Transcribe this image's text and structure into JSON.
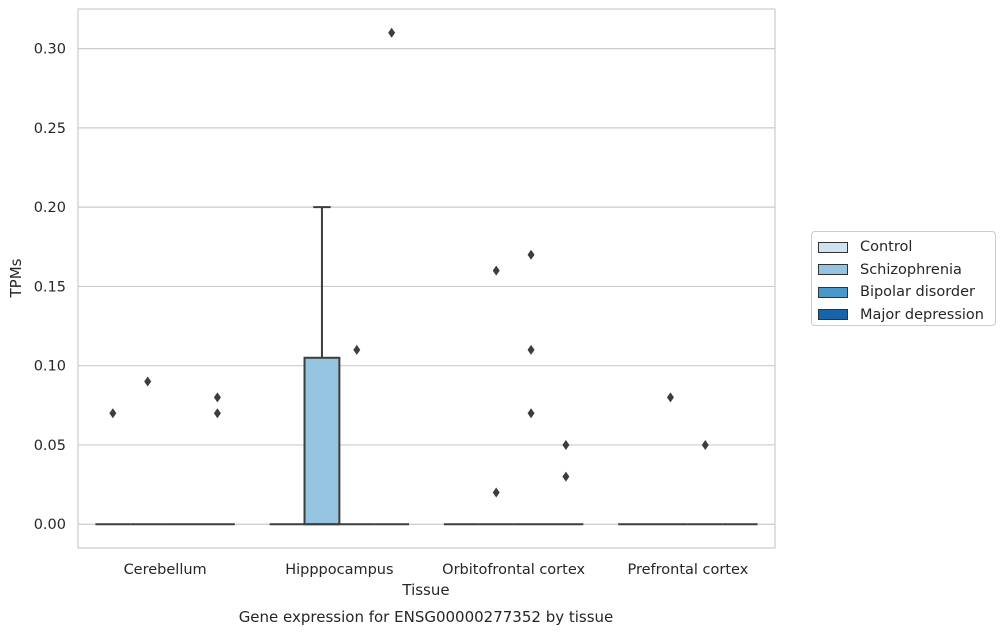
{
  "chart_data": {
    "type": "box",
    "title": "Gene expression for ENSG00000277352 by tissue",
    "xlabel": "Tissue",
    "ylabel": "TPMs",
    "ylim": [
      -0.015,
      0.325
    ],
    "yticks": [
      "0.00",
      "0.05",
      "0.10",
      "0.15",
      "0.20",
      "0.25",
      "0.30"
    ],
    "ytick_values": [
      0,
      0.05,
      0.1,
      0.15,
      0.2,
      0.25,
      0.3
    ],
    "grid": true,
    "legend_position": "right",
    "categories": [
      "Cerebellum",
      "Hipppocampus",
      "Orbitofrontal cortex",
      "Prefrontal cortex"
    ],
    "series": [
      {
        "name": "Control",
        "color": "#d0e1f2",
        "boxes": [
          {
            "category": "Cerebellum",
            "q1": 0,
            "median": 0,
            "q3": 0,
            "whisker_low": 0,
            "whisker_high": 0,
            "outliers": [
              0.07
            ]
          },
          {
            "category": "Hipppocampus",
            "q1": 0,
            "median": 0,
            "q3": 0,
            "whisker_low": 0,
            "whisker_high": 0,
            "outliers": []
          },
          {
            "category": "Orbitofrontal cortex",
            "q1": 0,
            "median": 0,
            "q3": 0,
            "whisker_low": 0,
            "whisker_high": 0,
            "outliers": []
          },
          {
            "category": "Prefrontal cortex",
            "q1": 0,
            "median": 0,
            "q3": 0,
            "whisker_low": 0,
            "whisker_high": 0,
            "outliers": []
          }
        ]
      },
      {
        "name": "Schizophrenia",
        "color": "#94c4df",
        "boxes": [
          {
            "category": "Cerebellum",
            "q1": 0,
            "median": 0,
            "q3": 0,
            "whisker_low": 0,
            "whisker_high": 0,
            "outliers": [
              0.09
            ]
          },
          {
            "category": "Hipppocampus",
            "q1": 0,
            "median": 0,
            "q3": 0.105,
            "whisker_low": 0,
            "whisker_high": 0.2,
            "outliers": []
          },
          {
            "category": "Orbitofrontal cortex",
            "q1": 0,
            "median": 0,
            "q3": 0,
            "whisker_low": 0,
            "whisker_high": 0,
            "outliers": [
              0.16,
              0.02
            ]
          },
          {
            "category": "Prefrontal cortex",
            "q1": 0,
            "median": 0,
            "q3": 0,
            "whisker_low": 0,
            "whisker_high": 0,
            "outliers": [
              0.08
            ]
          }
        ]
      },
      {
        "name": "Bipolar disorder",
        "color": "#4a98c9",
        "boxes": [
          {
            "category": "Cerebellum",
            "q1": 0,
            "median": 0,
            "q3": 0,
            "whisker_low": 0,
            "whisker_high": 0,
            "outliers": []
          },
          {
            "category": "Hipppocampus",
            "q1": 0,
            "median": 0,
            "q3": 0,
            "whisker_low": 0,
            "whisker_high": 0,
            "outliers": [
              0.11
            ]
          },
          {
            "category": "Orbitofrontal cortex",
            "q1": 0,
            "median": 0,
            "q3": 0,
            "whisker_low": 0,
            "whisker_high": 0,
            "outliers": [
              0.17,
              0.11,
              0.07
            ]
          },
          {
            "category": "Prefrontal cortex",
            "q1": 0,
            "median": 0,
            "q3": 0,
            "whisker_low": 0,
            "whisker_high": 0,
            "outliers": [
              0.05
            ]
          }
        ]
      },
      {
        "name": "Major depression",
        "color": "#1764ab",
        "boxes": [
          {
            "category": "Cerebellum",
            "q1": 0,
            "median": 0,
            "q3": 0,
            "whisker_low": 0,
            "whisker_high": 0,
            "outliers": [
              0.08,
              0.07
            ]
          },
          {
            "category": "Hipppocampus",
            "q1": 0,
            "median": 0,
            "q3": 0,
            "whisker_low": 0,
            "whisker_high": 0,
            "outliers": [
              0.31
            ]
          },
          {
            "category": "Orbitofrontal cortex",
            "q1": 0,
            "median": 0,
            "q3": 0,
            "whisker_low": 0,
            "whisker_high": 0,
            "outliers": [
              0.05,
              0.03
            ]
          },
          {
            "category": "Prefrontal cortex",
            "q1": 0,
            "median": 0,
            "q3": 0,
            "whisker_low": 0,
            "whisker_high": 0,
            "outliers": []
          }
        ]
      }
    ]
  }
}
